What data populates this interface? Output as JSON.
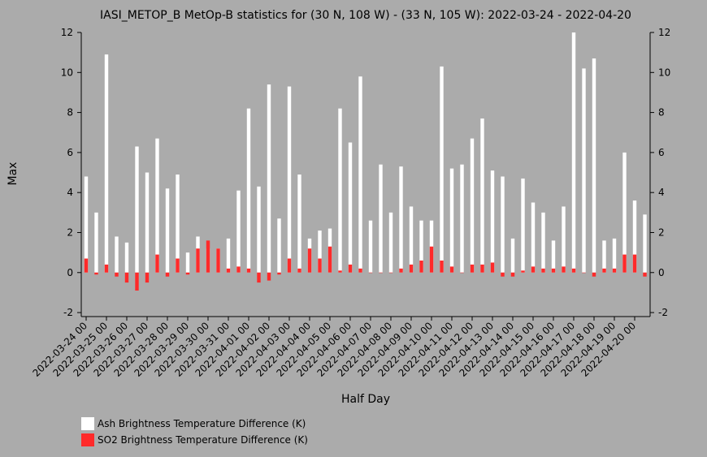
{
  "chart_data": {
    "type": "bar",
    "title": "IASI_METOP_B MetOp-B statistics for (30 N, 108 W) - (33 N, 105 W): 2022-03-24 - 2022-04-20",
    "xlabel": "Half Day",
    "ylabel": "Max",
    "ylim": [
      -2.2,
      12
    ],
    "yticks": [
      -2,
      0,
      2,
      4,
      6,
      8,
      10,
      12
    ],
    "xtick_labels": [
      "2022-03-24 00",
      "2022-03-25 00",
      "2022-03-26 00",
      "2022-03-27 00",
      "2022-03-28 00",
      "2022-03-29 00",
      "2022-03-30 00",
      "2022-03-31 00",
      "2022-04-01 00",
      "2022-04-02 00",
      "2022-04-03 00",
      "2022-04-04 00",
      "2022-04-05 00",
      "2022-04-06 00",
      "2022-04-07 00",
      "2022-04-08 00",
      "2022-04-09 00",
      "2022-04-10 00",
      "2022-04-11 00",
      "2022-04-12 00",
      "2022-04-13 00",
      "2022-04-14 00",
      "2022-04-15 00",
      "2022-04-16 00",
      "2022-04-17 00",
      "2022-04-18 00",
      "2022-04-19 00",
      "2022-04-20 00"
    ],
    "series": [
      {
        "name": "Ash Brightness Temperature Difference (K)",
        "color": "#ffffff",
        "values": [
          4.8,
          3.0,
          10.9,
          1.8,
          1.5,
          6.3,
          5.0,
          6.7,
          4.2,
          4.9,
          1.0,
          1.8,
          1.2,
          1.2,
          1.7,
          4.1,
          8.2,
          4.3,
          9.4,
          2.7,
          9.3,
          4.9,
          1.7,
          2.1,
          2.2,
          8.2,
          6.5,
          9.8,
          2.6,
          5.4,
          3.0,
          5.3,
          3.3,
          2.6,
          2.6,
          10.3,
          5.2,
          5.4,
          6.7,
          7.7,
          5.1,
          4.8,
          1.7,
          4.7,
          3.5,
          3.0,
          1.6,
          3.3,
          12.0,
          10.2,
          10.7,
          1.6,
          1.7,
          6.0,
          3.6,
          2.9
        ]
      },
      {
        "name": "SO2 Brightness Temperature Difference (K)",
        "color": "#ff2a2a",
        "values": [
          0.7,
          -0.1,
          0.4,
          -0.2,
          -0.5,
          -0.9,
          -0.5,
          0.9,
          -0.2,
          0.7,
          -0.1,
          1.2,
          1.6,
          1.2,
          0.2,
          0.3,
          0.2,
          -0.5,
          -0.4,
          -0.1,
          0.7,
          0.2,
          1.2,
          0.7,
          1.3,
          0.1,
          0.4,
          0.2,
          0.0,
          0.0,
          0.0,
          0.2,
          0.4,
          0.6,
          1.3,
          0.6,
          0.3,
          0.0,
          0.4,
          0.4,
          0.5,
          -0.2,
          -0.2,
          0.1,
          0.3,
          0.2,
          0.2,
          0.3,
          0.2,
          0.0,
          -0.2,
          0.2,
          0.2,
          0.9,
          0.9,
          -0.2
        ]
      }
    ]
  }
}
